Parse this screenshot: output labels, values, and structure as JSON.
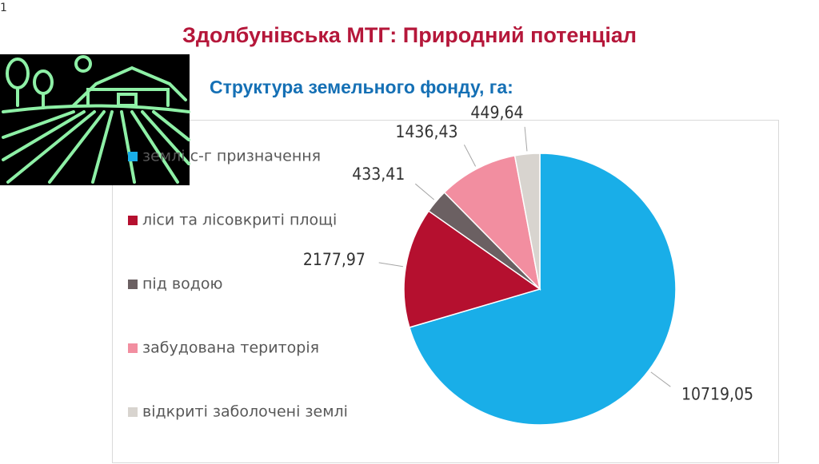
{
  "slide_number": "1",
  "chart_data": {
    "type": "pie",
    "title": "Здолбунівська МТГ: Природний потенціал",
    "subtitle": "Структура земельного фонду, га:",
    "categories": [
      "землі с-г призначення",
      "ліси та лісовкриті площі",
      "під водою",
      "забудована територія",
      "відкриті заболочені землі"
    ],
    "values": [
      10719.05,
      2177.97,
      433.41,
      1436.43,
      449.64
    ],
    "value_labels": [
      "10719,05",
      "2177,97",
      "433,41",
      "1436,43",
      "449,64"
    ],
    "colors": [
      "#19aee8",
      "#b5102f",
      "#6b6062",
      "#f28ea0",
      "#d8d4cf"
    ],
    "legend": "left"
  }
}
